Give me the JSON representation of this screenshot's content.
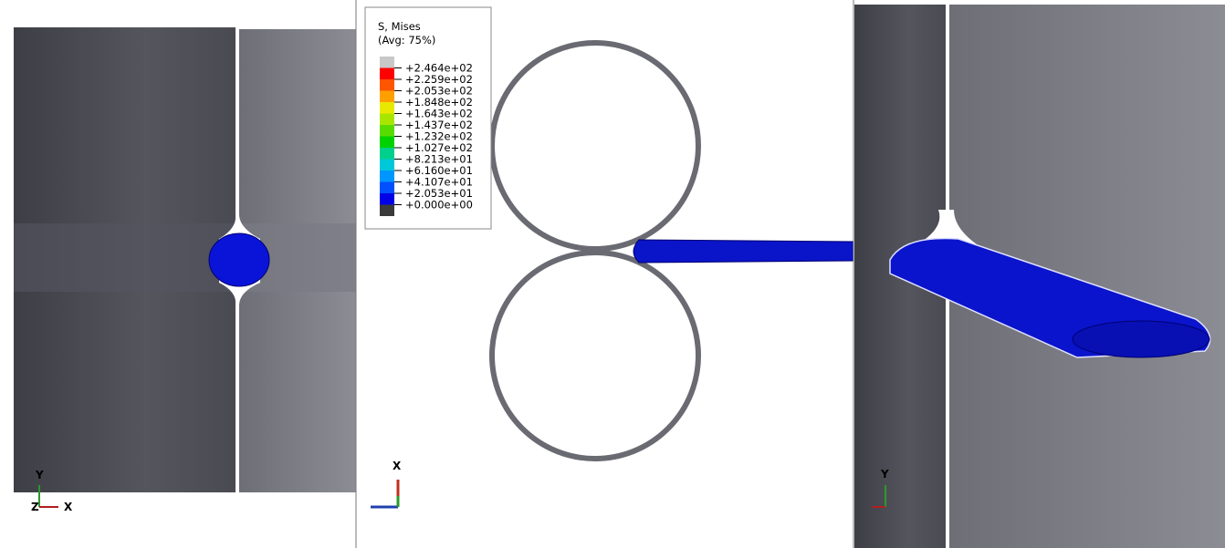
{
  "legend": {
    "title": "S, Mises",
    "subtitle": "(Avg: 75%)",
    "labels": [
      "+2.464e+02",
      "+2.259e+02",
      "+2.053e+02",
      "+1.848e+02",
      "+1.643e+02",
      "+1.437e+02",
      "+1.232e+02",
      "+1.027e+02",
      "+8.213e+01",
      "+6.160e+01",
      "+4.107e+01",
      "+2.053e+01",
      "+0.000e+00"
    ],
    "colors": [
      "#c8c8c8",
      "#ff0000",
      "#ff5500",
      "#ffa000",
      "#e8e800",
      "#a8e600",
      "#58dc00",
      "#00d200",
      "#00d08c",
      "#00c8d8",
      "#0096ff",
      "#0050ff",
      "#0000e6",
      "#3a3a3a"
    ]
  },
  "panels": [
    {
      "axes": [
        "Y",
        "Z",
        "X"
      ]
    },
    {
      "axes": [
        "X"
      ]
    },
    {
      "axes": [
        "Y"
      ]
    }
  ]
}
